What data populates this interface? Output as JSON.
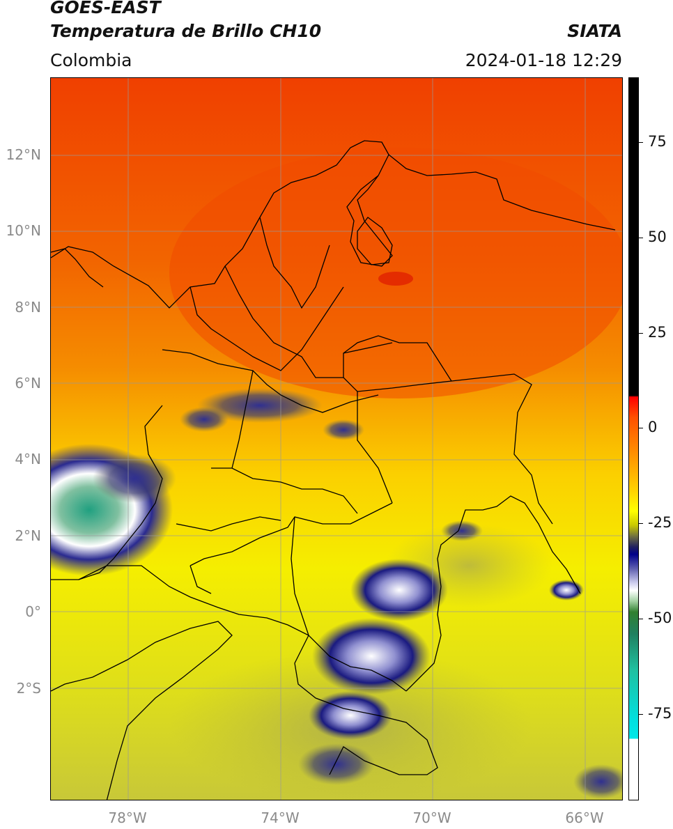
{
  "header": {
    "satellite": "GOES-EAST",
    "product": "Temperatura de Brillo CH10",
    "organization": "SIATA",
    "region": "Colombia",
    "timestamp": "2024-01-18 12:29"
  },
  "map": {
    "lat_labels": [
      "12°N",
      "10°N",
      "8°N",
      "6°N",
      "4°N",
      "2°N",
      "0°",
      "2°S"
    ],
    "lon_labels": [
      "78°W",
      "74°W",
      "70°W",
      "66°W"
    ],
    "colors": {
      "warm": "#f04000",
      "mid": "#f58c00",
      "cool": "#f5ee00",
      "cold_cloud": "#1a1a8a",
      "very_cold": "#ffffff",
      "coldest": "#20a080"
    }
  },
  "colorbar": {
    "tick_labels": [
      "75",
      "50",
      "25",
      "0",
      "-25",
      "-50",
      "-75"
    ]
  }
}
